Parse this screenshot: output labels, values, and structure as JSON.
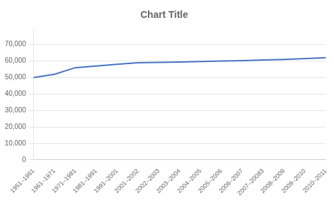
{
  "chart_data": {
    "type": "line",
    "title": "Chart Title",
    "categories": [
      "1951–1961",
      "1961–1971",
      "1971–1981",
      "1981–1991",
      "1991–2001",
      "2001–2002",
      "2002–2003",
      "2003–2004",
      "2004–2005",
      "2005–2006",
      "2006–2007",
      "2007–20083",
      "2008–2009",
      "2009–2010",
      "2010–2011"
    ],
    "values": [
      50000,
      52000,
      56000,
      57000,
      58000,
      59000,
      59200,
      59400,
      59700,
      60000,
      60300,
      60700,
      61000,
      61500,
      62000
    ],
    "color": "#4472C4",
    "ylim": [
      0,
      80000
    ],
    "yticks": [
      0,
      {
        "value": 10000,
        "label": "10,000"
      },
      {
        "value": 20000,
        "label": "20,000"
      },
      {
        "value": 30000,
        "label": "30,000"
      },
      {
        "value": 40000,
        "label": "40,000"
      },
      {
        "value": 50000,
        "label": "50,000"
      },
      {
        "value": 60000,
        "label": "60,000"
      },
      {
        "value": 70000,
        "label": "70,000"
      }
    ],
    "grid": true
  }
}
